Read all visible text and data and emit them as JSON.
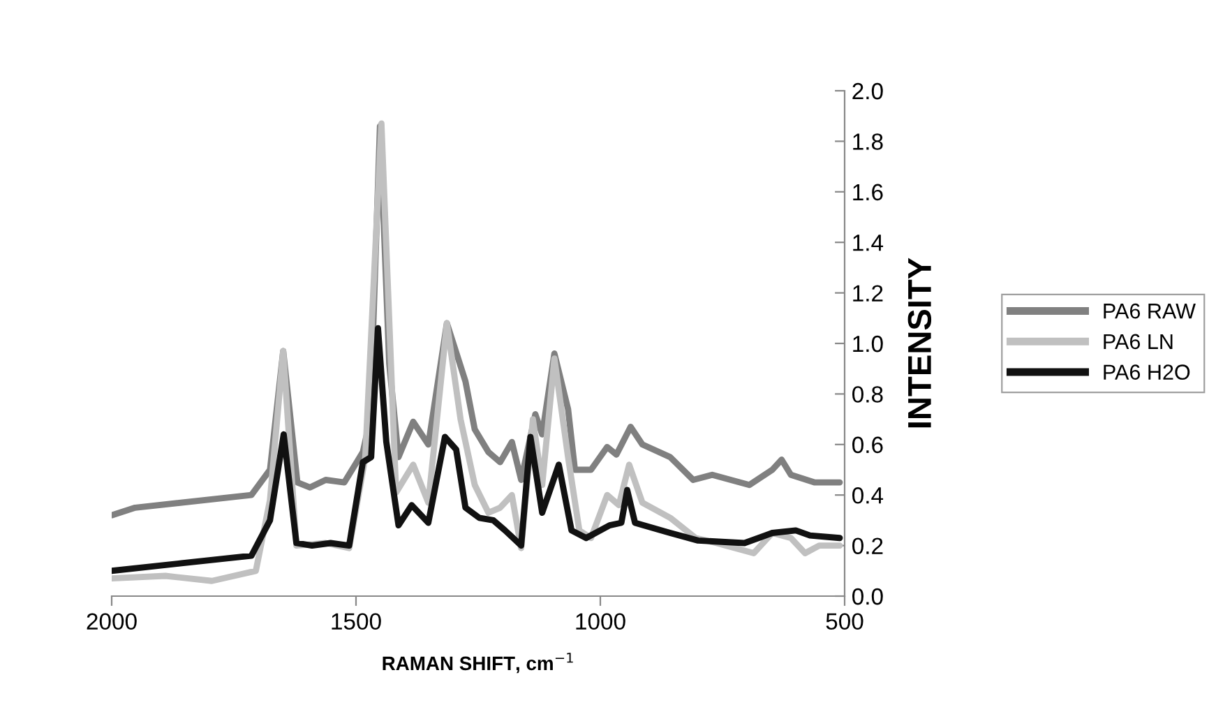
{
  "chart_data": {
    "type": "line",
    "xlabel": "RAMAN SHIFT, cm$^{−1}$",
    "ylabel": "INTENSITY",
    "xlim": [
      2000,
      500
    ],
    "xticks": [
      2000,
      1500,
      1000,
      500
    ],
    "ylim": [
      0.0,
      2.0
    ],
    "yticks": [
      {
        "value": 0,
        "label": "0.0"
      },
      {
        "value": 0.2,
        "label": "0.2"
      },
      {
        "value": 0.4,
        "label": "0.4"
      },
      {
        "value": 0.6,
        "label": "0.6"
      },
      {
        "value": 0.8,
        "label": "0.8"
      },
      {
        "value": 1.0,
        "label": "1.0"
      },
      {
        "value": 1.2,
        "label": "1.2"
      },
      {
        "value": 1.4,
        "label": "1.4"
      },
      {
        "value": 1.6,
        "label": "1.6"
      },
      {
        "value": 1.8,
        "label": "1.8"
      },
      {
        "value": 2.0,
        "label": "2.0"
      }
    ],
    "grid": false,
    "legend": "right",
    "marker": "none",
    "line_style": "solid",
    "series": [
      {
        "name": "PA6 RAW",
        "color": "#808080",
        "x": [
          2000,
          1952,
          1714,
          1676,
          1649,
          1620,
          1594,
          1562,
          1524,
          1486,
          1471,
          1451,
          1432,
          1413,
          1383,
          1352,
          1314,
          1276,
          1257,
          1229,
          1205,
          1181,
          1162,
          1133,
          1119,
          1094,
          1066,
          1052,
          1019,
          986,
          967,
          938,
          914,
          857,
          810,
          771,
          695,
          648,
          629,
          610,
          562,
          510
        ],
        "values": [
          0.32,
          0.35,
          0.4,
          0.5,
          0.97,
          0.45,
          0.43,
          0.46,
          0.45,
          0.57,
          0.7,
          1.86,
          0.92,
          0.55,
          0.69,
          0.6,
          1.08,
          0.85,
          0.66,
          0.57,
          0.53,
          0.61,
          0.46,
          0.72,
          0.64,
          0.96,
          0.74,
          0.5,
          0.5,
          0.59,
          0.56,
          0.67,
          0.6,
          0.55,
          0.46,
          0.48,
          0.44,
          0.5,
          0.54,
          0.48,
          0.45,
          0.45
        ]
      },
      {
        "name": "PA6 LN",
        "color": "#c0c0c0",
        "x": [
          2000,
          1890,
          1795,
          1705,
          1676,
          1649,
          1622,
          1562,
          1514,
          1481,
          1448,
          1418,
          1383,
          1352,
          1314,
          1286,
          1257,
          1229,
          1205,
          1181,
          1162,
          1138,
          1119,
          1094,
          1066,
          1043,
          1019,
          986,
          962,
          941,
          914,
          857,
          805,
          762,
          686,
          648,
          610,
          581,
          552,
          510
        ],
        "values": [
          0.07,
          0.08,
          0.06,
          0.1,
          0.38,
          0.97,
          0.2,
          0.21,
          0.19,
          0.55,
          1.87,
          0.41,
          0.52,
          0.37,
          1.08,
          0.7,
          0.44,
          0.33,
          0.35,
          0.4,
          0.19,
          0.7,
          0.44,
          0.94,
          0.55,
          0.26,
          0.23,
          0.4,
          0.36,
          0.52,
          0.37,
          0.31,
          0.23,
          0.21,
          0.17,
          0.25,
          0.23,
          0.17,
          0.2,
          0.2
        ]
      },
      {
        "name": "PA6 H2O",
        "color": "#111111",
        "x": [
          2000,
          1857,
          1714,
          1676,
          1648,
          1622,
          1590,
          1552,
          1514,
          1486,
          1469,
          1455,
          1438,
          1413,
          1386,
          1352,
          1318,
          1295,
          1276,
          1248,
          1219,
          1195,
          1162,
          1143,
          1119,
          1085,
          1059,
          1029,
          981,
          957,
          945,
          929,
          857,
          800,
          705,
          648,
          600,
          571,
          510
        ],
        "values": [
          0.1,
          0.13,
          0.16,
          0.3,
          0.64,
          0.21,
          0.2,
          0.21,
          0.2,
          0.53,
          0.55,
          1.06,
          0.61,
          0.28,
          0.36,
          0.29,
          0.63,
          0.58,
          0.35,
          0.31,
          0.3,
          0.26,
          0.2,
          0.63,
          0.33,
          0.52,
          0.26,
          0.23,
          0.28,
          0.29,
          0.42,
          0.29,
          0.25,
          0.22,
          0.21,
          0.25,
          0.26,
          0.24,
          0.23
        ]
      }
    ]
  }
}
